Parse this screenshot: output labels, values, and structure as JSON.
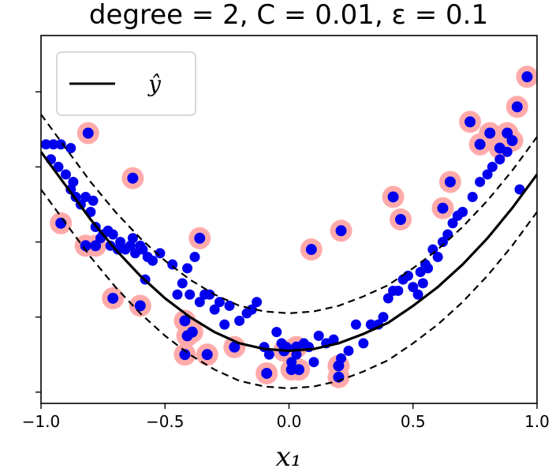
{
  "chart_data": {
    "type": "scatter",
    "title": "degree = 2, C = 0.01, ε = 0.1",
    "xlabel": "x₁",
    "ylabel": "",
    "xlim": [
      -1.0,
      1.0
    ],
    "ylim": [
      -0.03,
      0.95
    ],
    "xticks": [
      -1.0,
      -0.5,
      0.0,
      0.5,
      1.0
    ],
    "xtick_labels": [
      "−1.0",
      "−0.5",
      "0.0",
      "0.5",
      "1.0"
    ],
    "yticks": [
      0.0,
      0.2,
      0.4,
      0.6,
      0.8
    ],
    "ytick_labels_visible": false,
    "grid": false,
    "legend": {
      "position": "top-left",
      "entries": [
        "ŷ"
      ]
    },
    "colors": {
      "points": "#0000ee",
      "support_vectors": "#ffaaaa",
      "curve": "#000000"
    },
    "model": {
      "epsilon": 0.1,
      "margin_style": "dashed"
    },
    "curve": [
      [
        -1.0,
        0.64
      ],
      [
        -0.9,
        0.55
      ],
      [
        -0.8,
        0.46
      ],
      [
        -0.7,
        0.38
      ],
      [
        -0.6,
        0.31
      ],
      [
        -0.5,
        0.25
      ],
      [
        -0.4,
        0.2
      ],
      [
        -0.3,
        0.16
      ],
      [
        -0.2,
        0.13
      ],
      [
        -0.1,
        0.115
      ],
      [
        0.0,
        0.11
      ],
      [
        0.1,
        0.115
      ],
      [
        0.2,
        0.13
      ],
      [
        0.3,
        0.155
      ],
      [
        0.4,
        0.185
      ],
      [
        0.5,
        0.23
      ],
      [
        0.6,
        0.28
      ],
      [
        0.7,
        0.34
      ],
      [
        0.8,
        0.41
      ],
      [
        0.9,
        0.49
      ],
      [
        1.0,
        0.58
      ]
    ],
    "points": [
      [
        -0.98,
        0.66
      ],
      [
        -0.96,
        0.62
      ],
      [
        -0.95,
        0.66
      ],
      [
        -0.93,
        0.6
      ],
      [
        -0.92,
        0.66
      ],
      [
        -0.9,
        0.58
      ],
      [
        -0.88,
        0.65
      ],
      [
        -0.88,
        0.54
      ],
      [
        -0.87,
        0.56
      ],
      [
        -0.86,
        0.52
      ],
      [
        -0.84,
        0.5
      ],
      [
        -0.82,
        0.52
      ],
      [
        -0.8,
        0.48
      ],
      [
        -0.79,
        0.51
      ],
      [
        -0.78,
        0.44
      ],
      [
        -0.76,
        0.41
      ],
      [
        -0.75,
        0.42
      ],
      [
        -0.73,
        0.43
      ],
      [
        -0.72,
        0.39
      ],
      [
        -0.71,
        0.42
      ],
      [
        -0.69,
        0.38
      ],
      [
        -0.68,
        0.4
      ],
      [
        -0.66,
        0.38
      ],
      [
        -0.64,
        0.39
      ],
      [
        -0.63,
        0.41
      ],
      [
        -0.62,
        0.37
      ],
      [
        -0.6,
        0.39
      ],
      [
        -0.59,
        0.38
      ],
      [
        -0.58,
        0.3
      ],
      [
        -0.57,
        0.36
      ],
      [
        -0.55,
        0.35
      ],
      [
        -0.52,
        0.37
      ],
      [
        -0.47,
        0.34
      ],
      [
        -0.45,
        0.26
      ],
      [
        -0.43,
        0.29
      ],
      [
        -0.41,
        0.33
      ],
      [
        -0.4,
        0.26
      ],
      [
        -0.38,
        0.36
      ],
      [
        -0.36,
        0.24
      ],
      [
        -0.34,
        0.26
      ],
      [
        -0.32,
        0.26
      ],
      [
        -0.3,
        0.22
      ],
      [
        -0.28,
        0.24
      ],
      [
        -0.26,
        0.18
      ],
      [
        -0.24,
        0.23
      ],
      [
        -0.2,
        0.19
      ],
      [
        -0.17,
        0.21
      ],
      [
        -0.15,
        0.22
      ],
      [
        -0.13,
        0.24
      ],
      [
        -0.1,
        0.12
      ],
      [
        -0.08,
        0.1
      ],
      [
        -0.05,
        0.16
      ],
      [
        -0.03,
        0.13
      ],
      [
        -0.01,
        0.12
      ],
      [
        0.01,
        0.08
      ],
      [
        0.03,
        0.1
      ],
      [
        0.06,
        0.13
      ],
      [
        0.08,
        0.12
      ],
      [
        0.1,
        0.08
      ],
      [
        0.12,
        0.15
      ],
      [
        0.15,
        0.13
      ],
      [
        0.18,
        0.14
      ],
      [
        0.21,
        0.09
      ],
      [
        0.24,
        0.11
      ],
      [
        0.27,
        0.18
      ],
      [
        0.3,
        0.13
      ],
      [
        0.33,
        0.18
      ],
      [
        0.36,
        0.18
      ],
      [
        0.38,
        0.2
      ],
      [
        0.4,
        0.25
      ],
      [
        0.42,
        0.27
      ],
      [
        0.44,
        0.27
      ],
      [
        0.46,
        0.3
      ],
      [
        0.48,
        0.31
      ],
      [
        0.5,
        0.28
      ],
      [
        0.52,
        0.26
      ],
      [
        0.53,
        0.32
      ],
      [
        0.54,
        0.29
      ],
      [
        0.55,
        0.34
      ],
      [
        0.56,
        0.33
      ],
      [
        0.58,
        0.38
      ],
      [
        0.6,
        0.36
      ],
      [
        0.62,
        0.4
      ],
      [
        0.64,
        0.42
      ],
      [
        0.66,
        0.45
      ],
      [
        0.68,
        0.47
      ],
      [
        0.7,
        0.48
      ],
      [
        0.74,
        0.52
      ],
      [
        0.77,
        0.56
      ],
      [
        0.8,
        0.58
      ],
      [
        0.82,
        0.6
      ],
      [
        0.85,
        0.62
      ],
      [
        0.88,
        0.64
      ],
      [
        0.93,
        0.54
      ]
    ],
    "support_vectors": [
      [
        -0.81,
        0.69
      ],
      [
        -0.63,
        0.57
      ],
      [
        -0.92,
        0.45
      ],
      [
        -0.82,
        0.39
      ],
      [
        -0.78,
        0.39
      ],
      [
        -0.71,
        0.25
      ],
      [
        -0.6,
        0.23
      ],
      [
        -0.36,
        0.41
      ],
      [
        -0.42,
        0.19
      ],
      [
        -0.41,
        0.15
      ],
      [
        -0.39,
        0.16
      ],
      [
        -0.33,
        0.1
      ],
      [
        -0.42,
        0.1
      ],
      [
        -0.22,
        0.12
      ],
      [
        -0.09,
        0.05
      ],
      [
        -0.02,
        0.11
      ],
      [
        0.03,
        0.12
      ],
      [
        0.01,
        0.06
      ],
      [
        0.04,
        0.06
      ],
      [
        0.09,
        0.38
      ],
      [
        0.21,
        0.43
      ],
      [
        0.2,
        0.07
      ],
      [
        0.2,
        0.04
      ],
      [
        0.42,
        0.52
      ],
      [
        0.45,
        0.46
      ],
      [
        0.62,
        0.49
      ],
      [
        0.65,
        0.56
      ],
      [
        0.73,
        0.72
      ],
      [
        0.77,
        0.66
      ],
      [
        0.81,
        0.69
      ],
      [
        0.85,
        0.65
      ],
      [
        0.88,
        0.69
      ],
      [
        0.9,
        0.67
      ],
      [
        0.92,
        0.76
      ],
      [
        0.96,
        0.84
      ]
    ]
  }
}
